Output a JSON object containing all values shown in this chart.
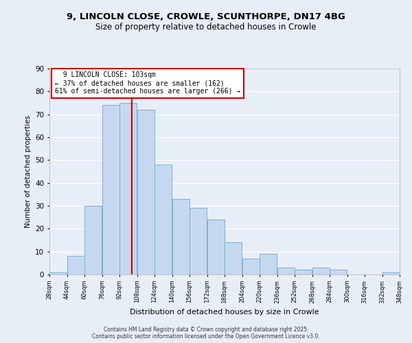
{
  "title_line1": "9, LINCOLN CLOSE, CROWLE, SCUNTHORPE, DN17 4BG",
  "title_line2": "Size of property relative to detached houses in Crowle",
  "xlabel": "Distribution of detached houses by size in Crowle",
  "ylabel": "Number of detached properties",
  "bar_color": "#c5d8f0",
  "bar_edge_color": "#7bafd4",
  "background_color": "#e8eef8",
  "grid_color": "#ffffff",
  "bin_edges": [
    28,
    44,
    60,
    76,
    92,
    108,
    124,
    140,
    156,
    172,
    188,
    204,
    220,
    236,
    252,
    268,
    284,
    300,
    316,
    332,
    348
  ],
  "bin_labels": [
    "28sqm",
    "44sqm",
    "60sqm",
    "76sqm",
    "92sqm",
    "108sqm",
    "124sqm",
    "140sqm",
    "156sqm",
    "172sqm",
    "188sqm",
    "204sqm",
    "220sqm",
    "236sqm",
    "252sqm",
    "268sqm",
    "284sqm",
    "300sqm",
    "316sqm",
    "332sqm",
    "348sqm"
  ],
  "counts": [
    1,
    8,
    30,
    74,
    75,
    72,
    48,
    33,
    29,
    24,
    14,
    7,
    9,
    3,
    2,
    3,
    2,
    0,
    0,
    1
  ],
  "property_value": 103,
  "property_label": "9 LINCOLN CLOSE: 103sqm",
  "annotation_line1": "← 37% of detached houses are smaller (162)",
  "annotation_line2": "61% of semi-detached houses are larger (266) →",
  "vline_color": "#cc0000",
  "annotation_box_color": "#ffffff",
  "annotation_box_edge": "#cc0000",
  "ylim": [
    0,
    90
  ],
  "yticks": [
    0,
    10,
    20,
    30,
    40,
    50,
    60,
    70,
    80,
    90
  ],
  "footnote1": "Contains HM Land Registry data © Crown copyright and database right 2025.",
  "footnote2": "Contains public sector information licensed under the Open Government Licence v3.0."
}
